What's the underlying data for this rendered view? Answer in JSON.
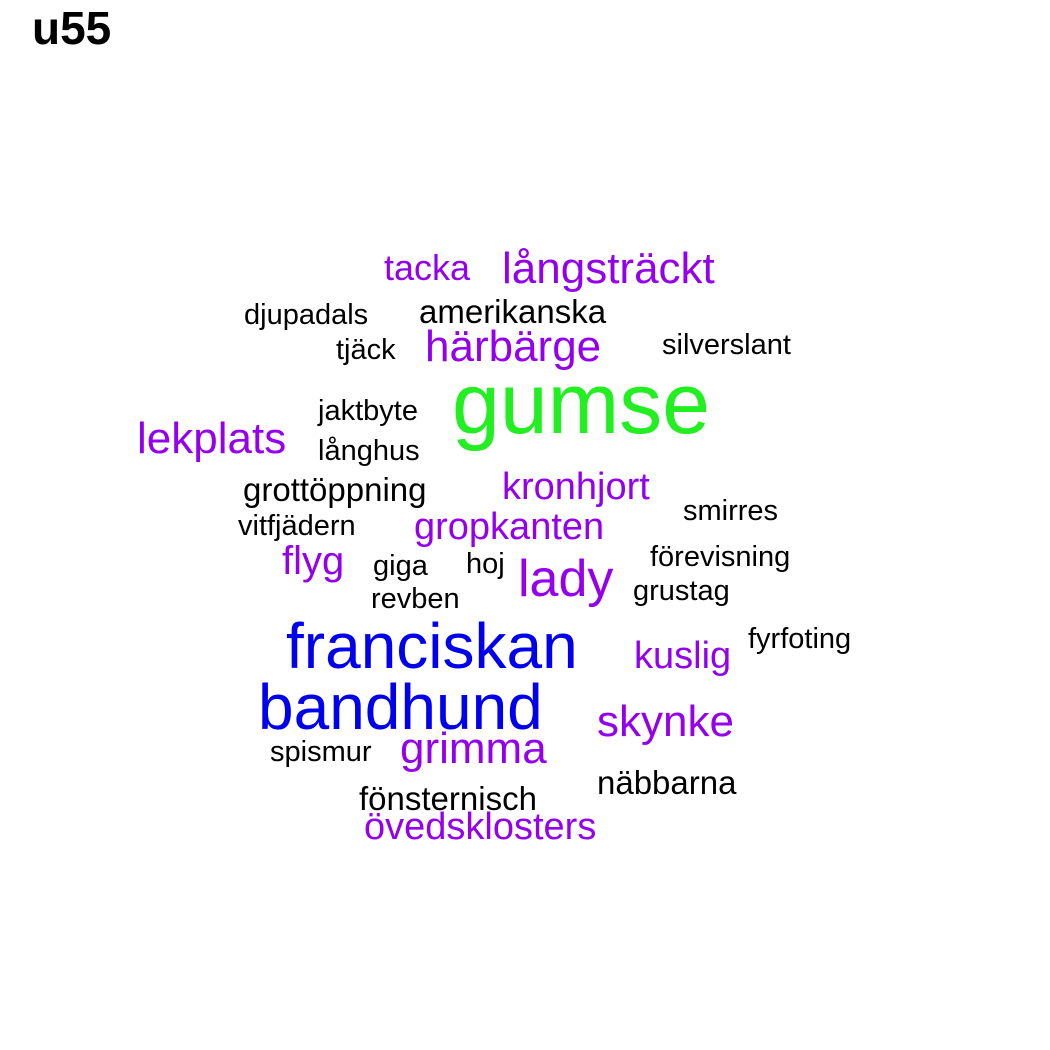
{
  "title": "u55",
  "colors": {
    "black": "#000000",
    "purple": "#9400EE",
    "blue": "#0000EE",
    "green": "#22EE22"
  },
  "words": [
    {
      "text": "gumse",
      "weight": 1.0,
      "color": "green"
    },
    {
      "text": "franciskan",
      "weight": 0.78,
      "color": "blue"
    },
    {
      "text": "bandhund",
      "weight": 0.78,
      "color": "blue"
    },
    {
      "text": "lady",
      "weight": 0.55,
      "color": "purple"
    },
    {
      "text": "härbärge",
      "weight": 0.52,
      "color": "purple"
    },
    {
      "text": "lekplats",
      "weight": 0.52,
      "color": "purple"
    },
    {
      "text": "långsträckt",
      "weight": 0.52,
      "color": "purple"
    },
    {
      "text": "skynke",
      "weight": 0.52,
      "color": "purple"
    },
    {
      "text": "grimma",
      "weight": 0.5,
      "color": "purple"
    },
    {
      "text": "flyg",
      "weight": 0.47,
      "color": "purple"
    },
    {
      "text": "kronhjort",
      "weight": 0.45,
      "color": "purple"
    },
    {
      "text": "gropkanten",
      "weight": 0.45,
      "color": "purple"
    },
    {
      "text": "kuslig",
      "weight": 0.45,
      "color": "purple"
    },
    {
      "text": "övedsklosters",
      "weight": 0.45,
      "color": "purple"
    },
    {
      "text": "tacka",
      "weight": 0.42,
      "color": "purple"
    },
    {
      "text": "amerikanska",
      "weight": 0.38,
      "color": "black"
    },
    {
      "text": "grottöppning",
      "weight": 0.38,
      "color": "black"
    },
    {
      "text": "fönsternisch",
      "weight": 0.38,
      "color": "black"
    },
    {
      "text": "näbbarna",
      "weight": 0.38,
      "color": "black"
    },
    {
      "text": "djupadals",
      "weight": 0.34,
      "color": "black"
    },
    {
      "text": "tjäck",
      "weight": 0.34,
      "color": "black"
    },
    {
      "text": "silverslant",
      "weight": 0.34,
      "color": "black"
    },
    {
      "text": "jaktbyte",
      "weight": 0.34,
      "color": "black"
    },
    {
      "text": "långhus",
      "weight": 0.34,
      "color": "black"
    },
    {
      "text": "vitfjädern",
      "weight": 0.34,
      "color": "black"
    },
    {
      "text": "smirres",
      "weight": 0.34,
      "color": "black"
    },
    {
      "text": "förevisning",
      "weight": 0.34,
      "color": "black"
    },
    {
      "text": "giga",
      "weight": 0.34,
      "color": "black"
    },
    {
      "text": "hoj",
      "weight": 0.34,
      "color": "black"
    },
    {
      "text": "grustag",
      "weight": 0.34,
      "color": "black"
    },
    {
      "text": "revben",
      "weight": 0.34,
      "color": "black"
    },
    {
      "text": "fyrfoting",
      "weight": 0.34,
      "color": "black"
    },
    {
      "text": "spismur",
      "weight": 0.34,
      "color": "black"
    }
  ]
}
